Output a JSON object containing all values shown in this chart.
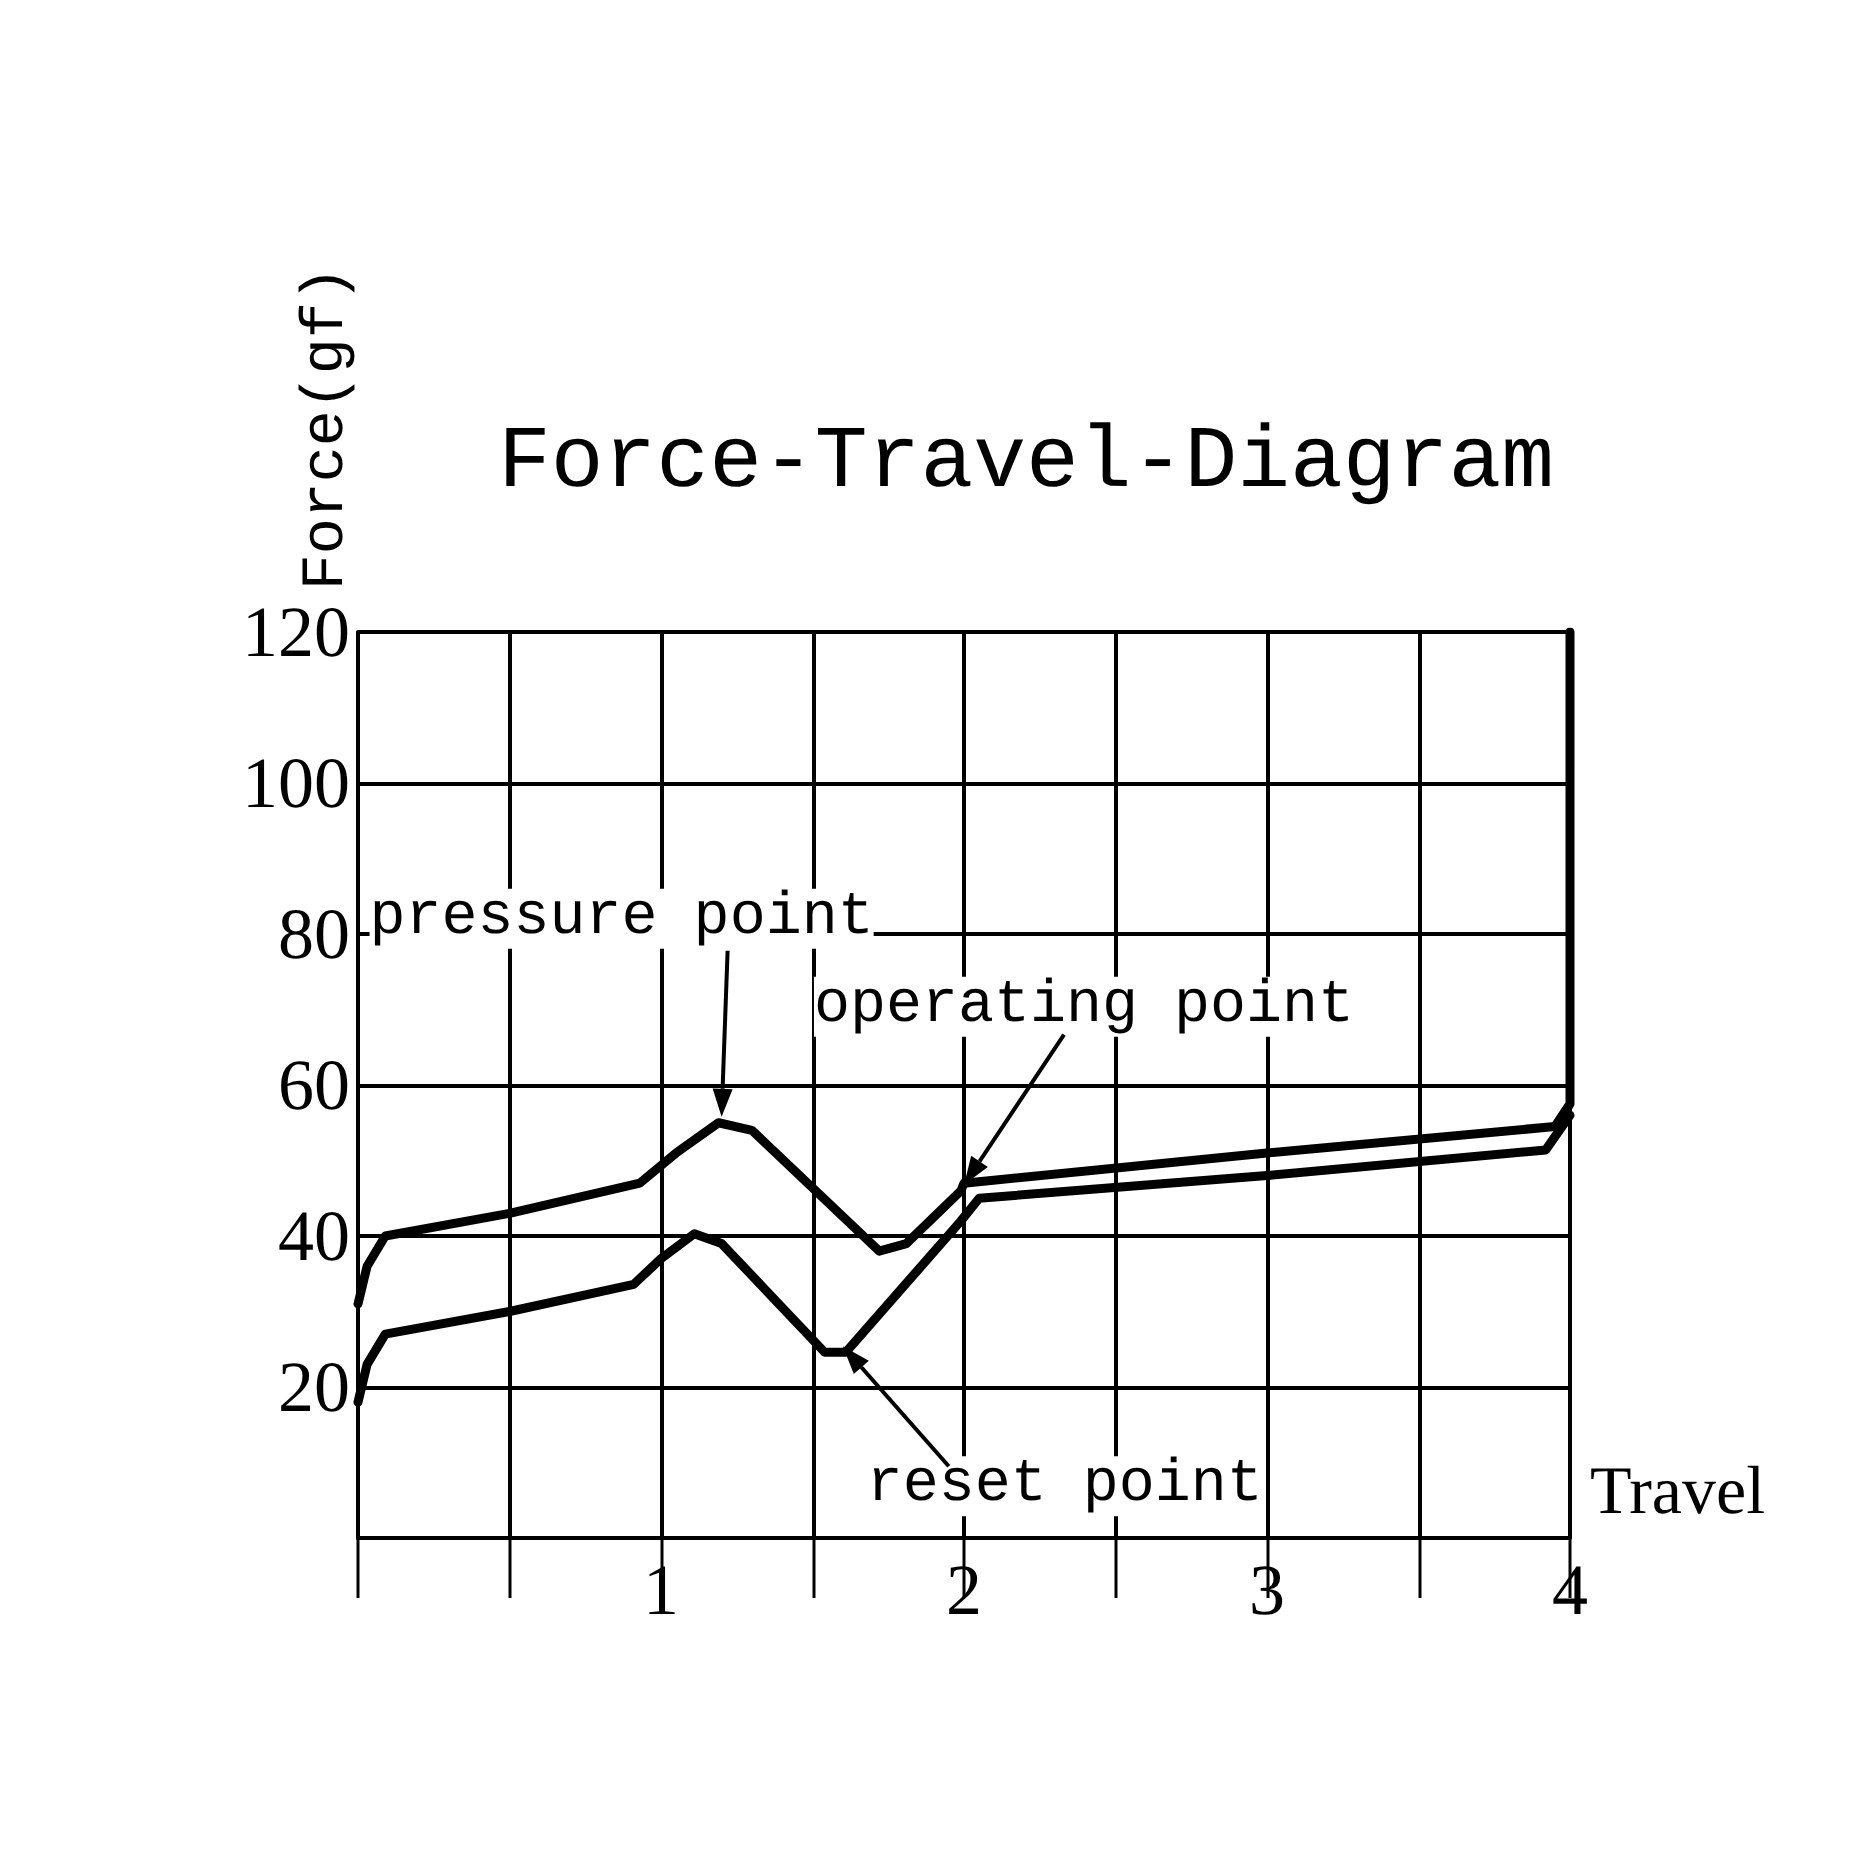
{
  "chart_data": {
    "type": "line",
    "title": "Force-Travel-Diagram",
    "xlabel": "Travel",
    "ylabel": "Force(gf)",
    "xlim": [
      0,
      4
    ],
    "ylim": [
      0,
      120
    ],
    "xticks": [
      {
        "value": 0,
        "label": null
      },
      {
        "value": 0.5,
        "label": null
      },
      1,
      {
        "value": 1.5,
        "label": null
      },
      2,
      {
        "value": 2.5,
        "label": null
      },
      3,
      {
        "value": 3.5,
        "label": null
      },
      4
    ],
    "yticks": [
      {
        "value": 0,
        "label": null
      },
      20,
      40,
      60,
      80,
      100,
      120
    ],
    "grid": true,
    "marker": "none",
    "line_style": "solid",
    "series": [
      {
        "color": "#000000",
        "x": [
          0,
          0.03,
          0.09,
          0.5,
          0.93,
          1.05,
          1.19,
          1.3,
          1.72,
          1.81,
          1.99,
          2.0,
          3.0,
          3.95,
          4.0,
          4.0
        ],
        "values": [
          31,
          36,
          40,
          43,
          47,
          51,
          55,
          54,
          38,
          39,
          46,
          47,
          51,
          54.5,
          57.5,
          120
        ]
      },
      {
        "color": "#000000",
        "x": [
          0,
          0.03,
          0.09,
          0.5,
          0.91,
          1.0,
          1.11,
          1.2,
          1.54,
          1.61,
          1.99,
          2.05,
          3.0,
          3.92,
          4.0
        ],
        "values": [
          18,
          23,
          27,
          30,
          33.6,
          37,
          40.3,
          39,
          24.6,
          24.6,
          42,
          45,
          48,
          51.4,
          56
        ]
      }
    ],
    "annotations": [
      {
        "text": "pressure point",
        "x": 1.2,
        "y": 55
      },
      {
        "text": "operating point",
        "x": 2.0,
        "y": 46
      },
      {
        "text": "reset point",
        "x": 1.6,
        "y": 24.6
      }
    ]
  }
}
